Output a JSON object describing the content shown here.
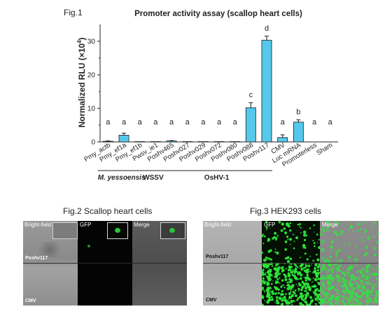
{
  "fig1": {
    "label": "Fig.1",
    "chart_data": {
      "type": "bar",
      "title": "Promoter activity assay (scallop heart cells)",
      "ylabel": "Normalized RLU (×10",
      "ylabel_exp": "4",
      "ylabel_close": ")",
      "ylim": [
        0,
        35
      ],
      "yticks": [
        "0",
        "10",
        "20",
        "30"
      ],
      "ytick_values": [
        0,
        10,
        20,
        30
      ],
      "categories": [
        "Pmy_actb",
        "Pmy_ef1a",
        "Pmy_ef1b",
        "Pwsv_ie1",
        "Poshv465",
        "Poshv027",
        "Poshv029",
        "Poshv072",
        "Poshv080",
        "Poshv088",
        "Poshv117",
        "CMV",
        "Luc mRNA",
        "Promoterless",
        "Sham"
      ],
      "values": [
        0.2,
        2.0,
        0.1,
        0.1,
        0.3,
        0.1,
        0.1,
        0.1,
        0.1,
        10.2,
        30.3,
        1.3,
        5.9,
        0,
        0
      ],
      "errors": [
        0.1,
        0.6,
        0,
        0,
        0.1,
        0,
        0,
        0,
        0,
        1.5,
        1.2,
        0.8,
        0.7,
        0,
        0
      ],
      "significance": [
        "a",
        "a",
        "a",
        "a",
        "a",
        "a",
        "a",
        "a",
        "a",
        "c",
        "d",
        "a",
        "b",
        "a",
        "a"
      ],
      "bar_color": "#56c8ea",
      "groups": [
        {
          "label": "M. yessoensis",
          "from": 0,
          "to": 2
        },
        {
          "label": "WSSV",
          "from": 3,
          "to": 3
        },
        {
          "label": "OsHV-1",
          "from": 4,
          "to": 10
        }
      ]
    }
  },
  "fig2": {
    "title": "Fig.2 Scallop heart cells",
    "columns": [
      "Bright-field",
      "GFP",
      "Merge"
    ],
    "rows": [
      "Poshv117",
      "CMV"
    ]
  },
  "fig3": {
    "title": "Fig.3 HEK293 cells",
    "columns": [
      "Bright-field",
      "GFP",
      "Merge"
    ],
    "rows": [
      "Poshv117",
      "CMV"
    ]
  },
  "colors": {
    "bar": "#56c8ea",
    "gfp": "#2ee83a"
  }
}
